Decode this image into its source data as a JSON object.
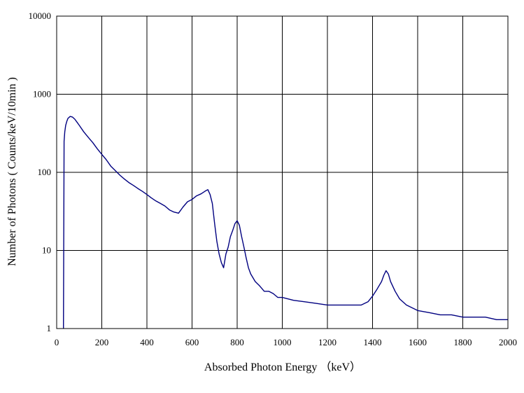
{
  "chart_data": {
    "type": "line",
    "xlabel": "Absorbed Photon Energy （keV）",
    "ylabel": "Number of Photons ( Counts/keV/10min )",
    "xlim": [
      0,
      2000
    ],
    "ylim": [
      1,
      10000
    ],
    "y_scale": "log",
    "grid": true,
    "x_ticks": [
      "0",
      "200",
      "400",
      "600",
      "800",
      "1000",
      "1200",
      "1400",
      "1600",
      "1800",
      "2000"
    ],
    "y_ticks": [
      "1",
      "10",
      "100",
      "1000",
      "10000"
    ],
    "x_tick_values": [
      0,
      200,
      400,
      600,
      800,
      1000,
      1200,
      1400,
      1600,
      1800,
      2000
    ],
    "y_tick_values": [
      1,
      10,
      100,
      1000,
      10000
    ],
    "line_color": "#000080",
    "series": [
      {
        "x": [
          30,
          33,
          36,
          40,
          45,
          50,
          60,
          70,
          80,
          90,
          100,
          120,
          140,
          160,
          180,
          200,
          220,
          240,
          260,
          280,
          300,
          320,
          340,
          360,
          380,
          400,
          420,
          440,
          460,
          480,
          500,
          520,
          540,
          560,
          580,
          600,
          620,
          640,
          660,
          670,
          680,
          690,
          700,
          710,
          720,
          730,
          740,
          750,
          760,
          770,
          780,
          790,
          800,
          810,
          820,
          830,
          840,
          850,
          860,
          880,
          900,
          920,
          940,
          960,
          980,
          1000,
          1050,
          1100,
          1150,
          1200,
          1250,
          1300,
          1350,
          1380,
          1400,
          1420,
          1440,
          1450,
          1460,
          1470,
          1480,
          1500,
          1520,
          1550,
          1600,
          1650,
          1700,
          1750,
          1800,
          1850,
          1900,
          1950,
          2000
        ],
        "y": [
          1,
          250,
          330,
          400,
          450,
          490,
          520,
          510,
          480,
          440,
          400,
          330,
          280,
          240,
          200,
          170,
          145,
          120,
          105,
          92,
          82,
          74,
          68,
          62,
          57,
          52,
          47,
          43,
          40,
          37,
          33,
          31,
          30,
          36,
          42,
          45,
          50,
          53,
          58,
          60,
          52,
          40,
          22,
          13,
          9,
          7,
          6,
          9,
          11,
          15,
          18,
          22,
          24,
          21,
          15,
          11,
          8,
          6,
          5,
          4,
          3.5,
          3,
          3,
          2.8,
          2.5,
          2.5,
          2.3,
          2.2,
          2.1,
          2,
          2,
          2,
          2,
          2.2,
          2.6,
          3.2,
          4,
          4.8,
          5.5,
          5,
          4,
          3,
          2.4,
          2,
          1.7,
          1.6,
          1.5,
          1.5,
          1.4,
          1.4,
          1.4,
          1.3,
          1.3
        ]
      }
    ]
  }
}
